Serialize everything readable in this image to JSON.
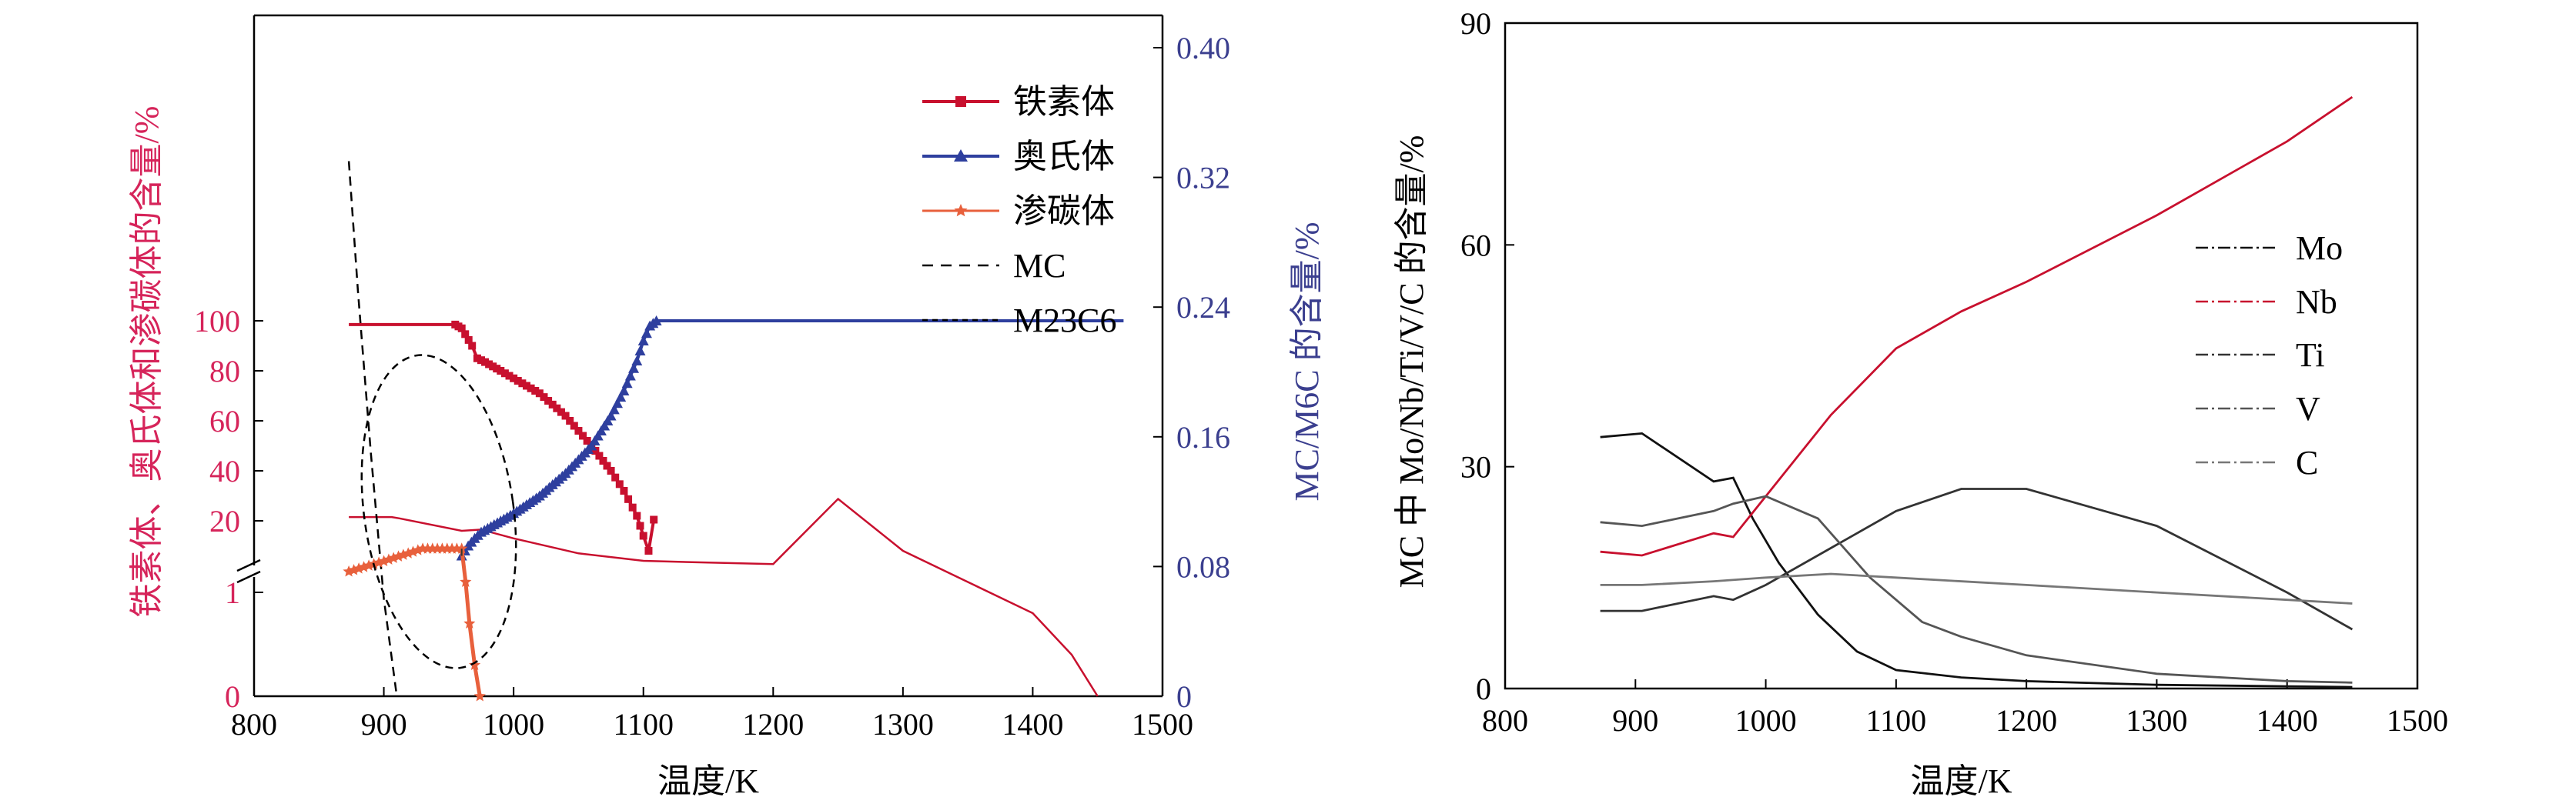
{
  "chart_data": [
    {
      "type": "line",
      "xlabel": "温度/K",
      "ylabel_left": "铁素体、奥氏体和渗碳体的含量/%",
      "ylabel_right": "MC/M6C 的含量/%",
      "xlim": [
        800,
        1500
      ],
      "x_ticks": [
        "800",
        "900",
        "1000",
        "1100",
        "1200",
        "1300",
        "1400",
        "1500"
      ],
      "y_left_upper_ticks": [
        "20",
        "40",
        "60",
        "80",
        "100"
      ],
      "y_left_lower_ticks": [
        "0",
        "1"
      ],
      "y_right_ticks": [
        "0",
        "0.08",
        "0.16",
        "0.24",
        "0.32",
        "0.40"
      ],
      "y_left_break": "between 1 and 20",
      "ylim_right": [
        0,
        0.4
      ],
      "legend_position": "top-right",
      "colors": {
        "ferrite": "#c8102e",
        "austenite": "#2e3f9e",
        "cementite": "#e8603c",
        "mc": "#000000",
        "m23c6": "#000000",
        "left_axis": "#d6245a",
        "right_axis": "#3b3f8f",
        "ellipse": "#000000"
      },
      "series": [
        {
          "name": "铁素体",
          "axis": "left",
          "marker": "square",
          "x": [
            873,
            900,
            930,
            955,
            960,
            968,
            972,
            978,
            990,
            1000,
            1020,
            1040,
            1060,
            1075,
            1085,
            1095,
            1100,
            1104,
            1108
          ],
          "y": [
            98.5,
            98.5,
            98.5,
            98.5,
            97,
            90,
            85,
            83.5,
            80,
            77,
            71,
            62,
            50,
            40,
            32,
            22,
            14,
            8,
            1.7
          ]
        },
        {
          "name": "奥氏体",
          "axis": "left",
          "marker": "triangle",
          "x": [
            960,
            965,
            970,
            975,
            980,
            990,
            1000,
            1020,
            1040,
            1060,
            1075,
            1085,
            1095,
            1100,
            1105,
            1110,
            1200,
            1300,
            1400,
            1470
          ],
          "y": [
            6,
            10,
            13,
            15.5,
            17,
            20,
            23,
            30,
            39,
            50,
            62,
            72,
            84,
            92,
            98,
            100,
            100,
            100,
            100,
            100
          ]
        },
        {
          "name": "渗碳体",
          "axis": "left",
          "marker": "star",
          "x": [
            873,
            900,
            930,
            960,
            963,
            966,
            970,
            974
          ],
          "y": [
            1.2,
            1.3,
            1.42,
            1.42,
            1.1,
            0.7,
            0.3,
            0
          ]
        },
        {
          "name": "MC",
          "axis": "right",
          "style": "dashed",
          "x": [
            873,
            880,
            890,
            900,
            910
          ],
          "y": [
            0.33,
            0.25,
            0.15,
            0.06,
            0
          ]
        },
        {
          "name": "M23C6",
          "axis": "left",
          "style": "dotted",
          "x": [
            873,
            906,
            912,
            960,
            975,
            1000,
            1050,
            1100,
            1150,
            1200,
            1250,
            1300,
            1350,
            1400,
            1430,
            1450
          ],
          "y": [
            21.5,
            21.5,
            21,
            16,
            16.5,
            13,
            7,
            4,
            3.3,
            2.7,
            1.9,
            1.4,
            1.1,
            0.8,
            0.4,
            0
          ]
        }
      ]
    },
    {
      "type": "line",
      "xlabel": "温度/K",
      "ylabel": "MC 中 Mo/Nb/Ti/V/C 的含量/%",
      "xlim": [
        800,
        1500
      ],
      "ylim": [
        0,
        90
      ],
      "x_ticks": [
        "800",
        "900",
        "1000",
        "1100",
        "1200",
        "1300",
        "1400",
        "1500"
      ],
      "y_ticks": [
        "0",
        "30",
        "60",
        "90"
      ],
      "legend_position": "right",
      "series": [
        {
          "name": "Mo",
          "color": "#111111",
          "x": [
            873,
            905,
            960,
            975,
            990,
            1010,
            1040,
            1070,
            1100,
            1150,
            1200,
            1300,
            1400,
            1450
          ],
          "y": [
            34,
            34.5,
            28,
            28.5,
            23,
            17,
            10,
            5,
            2.5,
            1.5,
            1.0,
            0.5,
            0.3,
            0.2
          ]
        },
        {
          "name": "Nb",
          "color": "#c8102e",
          "x": [
            873,
            905,
            960,
            975,
            1000,
            1050,
            1100,
            1150,
            1200,
            1300,
            1400,
            1450
          ],
          "y": [
            18.5,
            18,
            21,
            20.5,
            26,
            37,
            46,
            51,
            55,
            64,
            74,
            80
          ]
        },
        {
          "name": "Ti",
          "color": "#333333",
          "x": [
            873,
            905,
            960,
            975,
            1000,
            1050,
            1100,
            1150,
            1200,
            1300,
            1400,
            1450
          ],
          "y": [
            10.5,
            10.5,
            12.5,
            12,
            14,
            19,
            24,
            27,
            27,
            22,
            13,
            8
          ]
        },
        {
          "name": "V",
          "color": "#555555",
          "x": [
            873,
            905,
            960,
            975,
            1000,
            1040,
            1080,
            1120,
            1150,
            1200,
            1300,
            1400,
            1450
          ],
          "y": [
            22.5,
            22,
            24,
            25,
            26,
            23,
            15,
            9,
            7,
            4.5,
            2,
            1,
            0.8
          ]
        },
        {
          "name": "C",
          "color": "#777777",
          "x": [
            873,
            905,
            960,
            1000,
            1050,
            1100,
            1200,
            1300,
            1400,
            1450
          ],
          "y": [
            14,
            14,
            14.5,
            15,
            15.5,
            15,
            14,
            13,
            12,
            11.5
          ]
        }
      ]
    }
  ]
}
